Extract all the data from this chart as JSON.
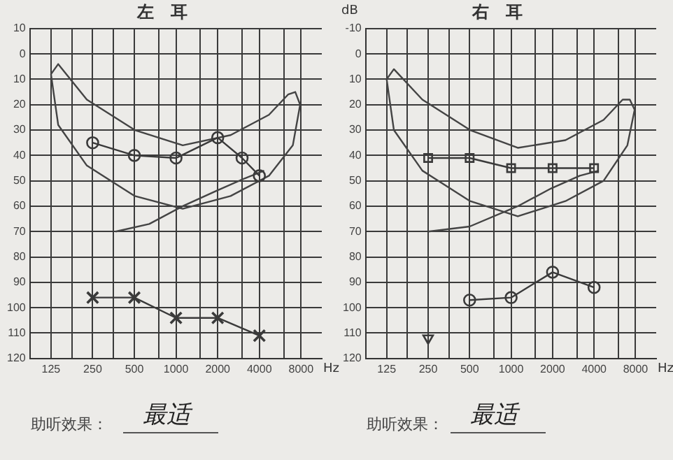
{
  "chart_data": [
    {
      "type": "line",
      "title": "左　耳",
      "xlabel": "Hz",
      "log": "x",
      "grid": true,
      "legend": false,
      "xlim": [
        88,
        11300
      ],
      "ylim": [
        120,
        -10
      ],
      "xticks": [
        {
          "value": 125,
          "label": "125"
        },
        {
          "value": 177,
          "label": null
        },
        250,
        {
          "value": 354,
          "label": null
        },
        500,
        {
          "value": 750,
          "label": null
        },
        1000,
        {
          "value": 1500,
          "label": null
        },
        2000,
        {
          "value": 3000,
          "label": null
        },
        4000,
        {
          "value": 6000,
          "label": null
        },
        8000
      ],
      "yticks": [
        {
          "value": -10,
          "label": "10"
        },
        0,
        10,
        20,
        30,
        40,
        50,
        60,
        70,
        80,
        90,
        100,
        110,
        120
      ],
      "series": [
        {
          "color": "#3a3a3a",
          "marker": "circle",
          "x": [
            250,
            500,
            1000,
            2000,
            3000,
            4000
          ],
          "values": [
            35,
            40,
            41,
            33,
            41,
            48
          ]
        },
        {
          "color": "#3a3a3a",
          "marker": "cross",
          "x": [
            250,
            500,
            1000,
            2000,
            4000
          ],
          "values": [
            96,
            96,
            104,
            104,
            111
          ]
        },
        {
          "color": "#444444",
          "marker": "none",
          "x": [
            125,
            141,
            227,
            504,
            1118,
            2480,
            4690,
            6450,
            7270,
            7880
          ],
          "values": [
            8,
            4,
            18,
            30,
            36,
            32,
            24,
            16,
            15,
            20
          ]
        },
        {
          "color": "#444444",
          "marker": "none",
          "x": [
            125,
            141,
            227,
            504,
            1118,
            2480,
            4690,
            6980,
            7880
          ],
          "values": [
            8,
            28,
            44,
            56,
            61,
            56,
            48,
            36,
            20
          ]
        },
        {
          "color": "#444444",
          "marker": "none",
          "x": [
            366,
            641,
            1118,
            1950,
            3150,
            4330
          ],
          "values": [
            70,
            67,
            60,
            54,
            49,
            46
          ]
        }
      ],
      "annotations": [
        "助听效果：",
        "最适"
      ]
    },
    {
      "type": "line",
      "title": "右　耳",
      "xlabel": "Hz",
      "ylabel": "dB",
      "log": "x",
      "grid": true,
      "legend": false,
      "xlim": [
        88,
        11300
      ],
      "ylim": [
        120,
        -10
      ],
      "xticks": [
        {
          "value": 125,
          "label": "125"
        },
        {
          "value": 177,
          "label": null
        },
        250,
        {
          "value": 354,
          "label": null
        },
        500,
        {
          "value": 750,
          "label": null
        },
        1000,
        {
          "value": 1500,
          "label": null
        },
        2000,
        {
          "value": 3000,
          "label": null
        },
        4000,
        {
          "value": 6000,
          "label": null
        },
        8000
      ],
      "yticks": [
        -10,
        0,
        10,
        20,
        30,
        40,
        50,
        60,
        70,
        80,
        90,
        100,
        110,
        120
      ],
      "series": [
        {
          "color": "#3a3a3a",
          "marker": "square",
          "x": [
            250,
            500,
            1000,
            2000,
            4000
          ],
          "values": [
            41,
            41,
            45,
            45,
            45
          ]
        },
        {
          "color": "#3a3a3a",
          "marker": "circle",
          "x": [
            500,
            1000,
            2000,
            4000
          ],
          "values": [
            97,
            96,
            86,
            92
          ]
        },
        {
          "type": "scatter",
          "color": "#3a3a3a",
          "marker": "triangle",
          "x": [
            250
          ],
          "values": [
            112
          ]
        },
        {
          "color": "#444444",
          "marker": "none",
          "x": [
            125,
            141,
            227,
            504,
            1118,
            2480,
            4690,
            6450,
            7270,
            7880
          ],
          "values": [
            10,
            6,
            18,
            30,
            37,
            34,
            26,
            18,
            18,
            22
          ]
        },
        {
          "color": "#444444",
          "marker": "none",
          "x": [
            125,
            141,
            227,
            504,
            1118,
            2480,
            4690,
            6980,
            7880
          ],
          "values": [
            10,
            30,
            46,
            58,
            64,
            58,
            50,
            36,
            22
          ]
        },
        {
          "color": "#444444",
          "marker": "none",
          "x": [
            250,
            500,
            1118,
            1950,
            3150,
            4330
          ],
          "values": [
            70,
            68,
            60,
            53,
            48,
            46
          ]
        }
      ],
      "annotations": [
        "助听效果：",
        "最适"
      ]
    }
  ]
}
